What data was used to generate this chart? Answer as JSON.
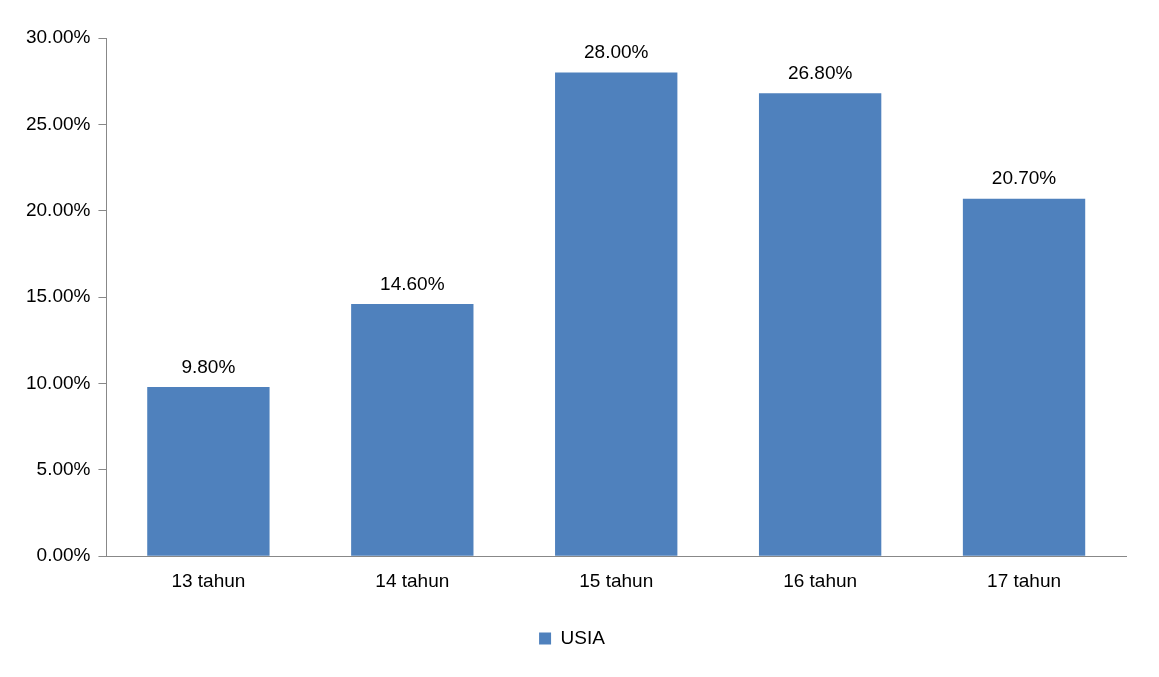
{
  "chart_data": {
    "type": "bar",
    "categories": [
      "13 tahun",
      "14 tahun",
      "15 tahun",
      "16 tahun",
      "17 tahun"
    ],
    "series": [
      {
        "name": "USIA",
        "color": "#4f81bd",
        "values": [
          9.8,
          14.6,
          28.0,
          26.8,
          20.7
        ],
        "value_labels": [
          "9.80%",
          "14.60%",
          "28.00%",
          "26.80%",
          "20.70%"
        ]
      }
    ],
    "ylim": [
      0,
      30
    ],
    "yticks": [
      {
        "value": 0,
        "label": "0.00%"
      },
      {
        "value": 5,
        "label": "5.00%"
      },
      {
        "value": 10,
        "label": "10.00%"
      },
      {
        "value": 15,
        "label": "15.00%"
      },
      {
        "value": 20,
        "label": "20.00%"
      },
      {
        "value": 25,
        "label": "25.00%"
      },
      {
        "value": 30,
        "label": "30.00%"
      }
    ],
    "grid": false,
    "legend": "bottom"
  }
}
